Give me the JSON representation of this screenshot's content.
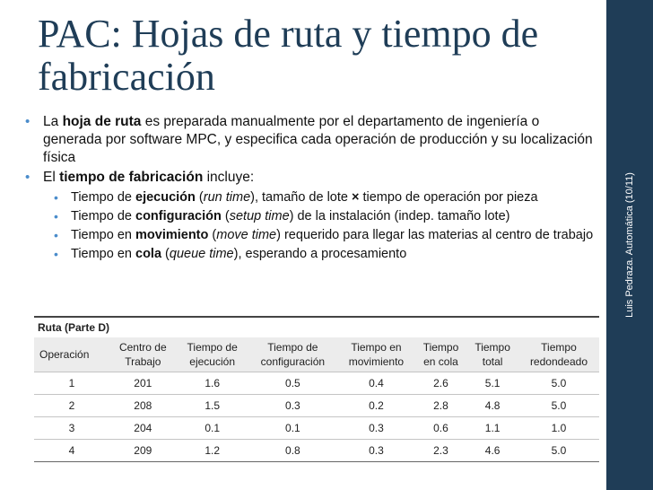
{
  "title_line1": "PAC: Hojas de ruta y tiempo de",
  "title_line2": "fabricación",
  "sidebar_text": "Luis Pedraza. Automática (10/11)",
  "bullet1": {
    "pre": "La ",
    "bold": "hoja de ruta",
    "post": " es preparada manualmente por el departamento de ingeniería o generada por software MPC, y especifica cada operación de producción y su localización física"
  },
  "bullet2": {
    "pre": "El ",
    "bold": "tiempo de fabricación",
    "post": " incluye:"
  },
  "subs": [
    {
      "pre": "Tiempo de ",
      "bold": "ejecución",
      "open": " (",
      "ital": "run time",
      "post": "), tamaño de lote ",
      "times": "×",
      "post2": " tiempo de operación por pieza"
    },
    {
      "pre": "Tiempo de ",
      "bold": "configuración",
      "open": " (",
      "ital": "setup time",
      "post": ") de la instalación (indep. tamaño lote)"
    },
    {
      "pre": "Tiempo en ",
      "bold": "movimiento",
      "open": " (",
      "ital": "move time",
      "post": ") requerido para llegar las materias al centro de trabajo"
    },
    {
      "pre": "Tiempo en ",
      "bold": "cola",
      "open": " (",
      "ital": "queue time",
      "post": "), esperando a procesamiento"
    }
  ],
  "table": {
    "caption": "Ruta (Parte D)",
    "headers": [
      [
        "Operación"
      ],
      [
        "Centro de",
        "Trabajo"
      ],
      [
        "Tiempo de",
        "ejecución"
      ],
      [
        "Tiempo de",
        "configuración"
      ],
      [
        "Tiempo en",
        "movimiento"
      ],
      [
        "Tiempo",
        "en cola"
      ],
      [
        "Tiempo",
        "total"
      ],
      [
        "Tiempo",
        "redondeado"
      ]
    ],
    "rows": [
      [
        "1",
        "201",
        "1.6",
        "0.5",
        "0.4",
        "2.6",
        "5.1",
        "5.0"
      ],
      [
        "2",
        "208",
        "1.5",
        "0.3",
        "0.2",
        "2.8",
        "4.8",
        "5.0"
      ],
      [
        "3",
        "204",
        "0.1",
        "0.1",
        "0.3",
        "0.6",
        "1.1",
        "1.0"
      ],
      [
        "4",
        "209",
        "1.2",
        "0.8",
        "0.3",
        "2.3",
        "4.6",
        "5.0"
      ]
    ]
  },
  "colors": {
    "title": "#1f3d57",
    "sidebar": "#1f3d57",
    "bullet": "#4a8ccb"
  }
}
